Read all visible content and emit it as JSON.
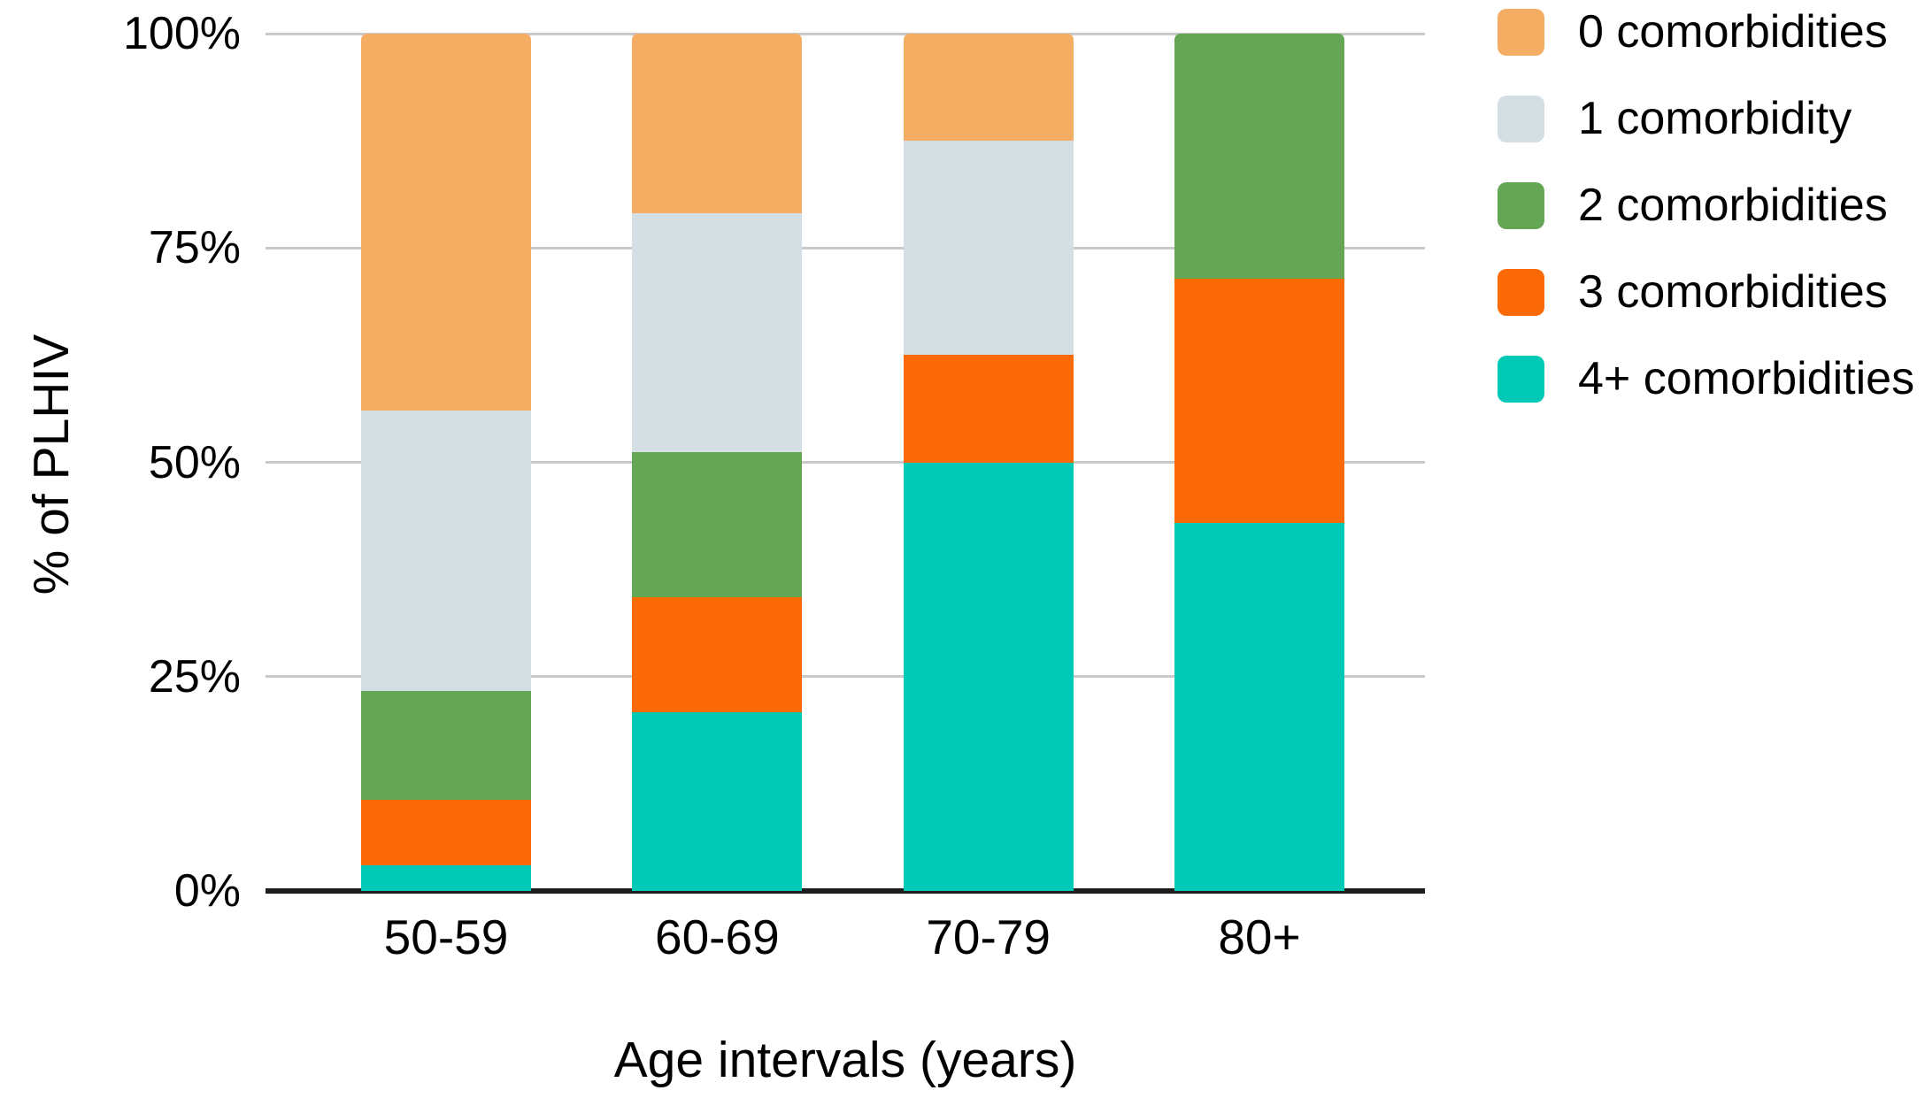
{
  "chart_data": {
    "type": "bar",
    "stacked": true,
    "units": "percent",
    "title": "",
    "xlabel": "Age intervals (years)",
    "ylabel": "% of PLHIV",
    "categories": [
      "50-59",
      "60-69",
      "70-79",
      "80+"
    ],
    "series": [
      {
        "name": "0 comorbidities",
        "color": "#F5AD63",
        "values": [
          44.0,
          21.0,
          12.5,
          0
        ]
      },
      {
        "name": "1 comorbidity",
        "color": "#D3DFE3",
        "values": [
          32.7,
          27.8,
          25.0,
          0
        ]
      },
      {
        "name": "2 comorbidities",
        "color": "#64A653",
        "values": [
          12.7,
          16.9,
          0.0,
          28.6
        ]
      },
      {
        "name": "3 comorbidities",
        "color": "#FB6A06",
        "values": [
          7.6,
          13.5,
          12.5,
          28.5
        ]
      },
      {
        "name": "4+ comorbidities",
        "color": "#00C9B6",
        "values": [
          3.0,
          20.8,
          50.0,
          42.9
        ]
      }
    ],
    "y_ticks": [
      "100%",
      "75%",
      "50%",
      "25%",
      "0%"
    ],
    "y_tick_values": [
      100,
      75,
      50,
      25,
      0
    ],
    "ylim": [
      0,
      100
    ],
    "grid": true,
    "legend_position": "right"
  },
  "colors": {
    "gridline": "#C9C9C9",
    "axis_line": "#1D1D1D",
    "text": "#000000",
    "background": "#FFFFFF"
  }
}
